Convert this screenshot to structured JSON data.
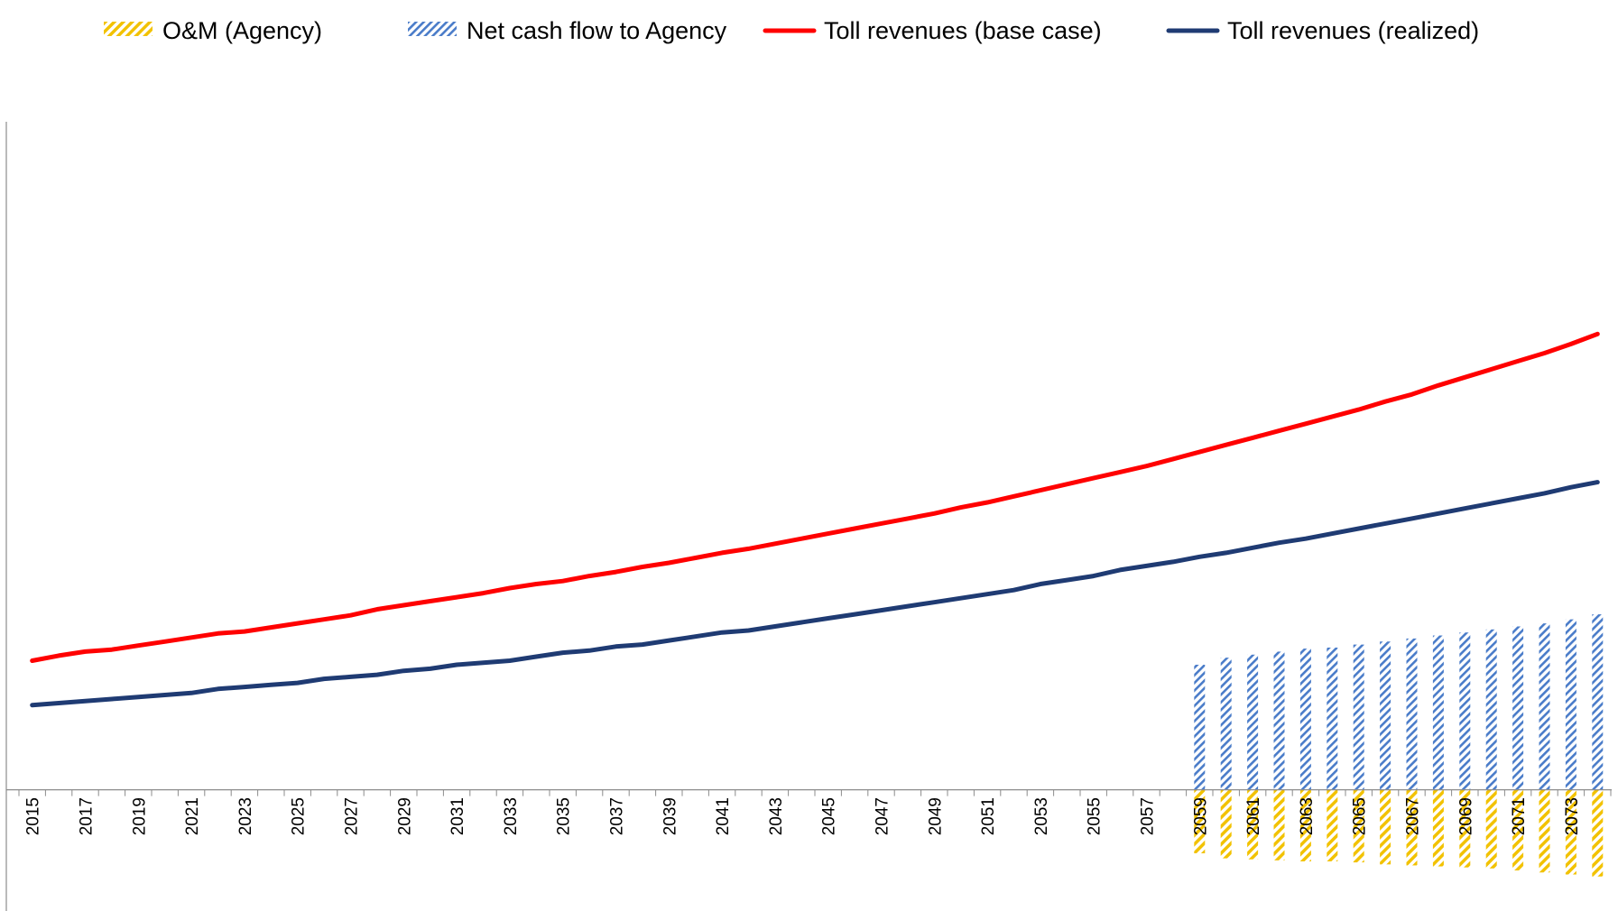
{
  "chart_data": {
    "type": "bar+line",
    "title": "",
    "xlabel": "",
    "ylabel": "",
    "ylim": [
      -100,
      600
    ],
    "y_tick_labels_shown": false,
    "grid": false,
    "legend_position": "top",
    "x": [
      2015,
      2016,
      2017,
      2018,
      2019,
      2020,
      2021,
      2022,
      2023,
      2024,
      2025,
      2026,
      2027,
      2028,
      2029,
      2030,
      2031,
      2032,
      2033,
      2034,
      2035,
      2036,
      2037,
      2038,
      2039,
      2040,
      2041,
      2042,
      2043,
      2044,
      2045,
      2046,
      2047,
      2048,
      2049,
      2050,
      2051,
      2052,
      2053,
      2054,
      2055,
      2056,
      2057,
      2058,
      2059,
      2060,
      2061,
      2062,
      2063,
      2064,
      2065,
      2066,
      2067,
      2068,
      2069,
      2070,
      2071,
      2072,
      2073,
      2074
    ],
    "x_tick_labels": [
      "2015",
      "2017",
      "2019",
      "2021",
      "2023",
      "2025",
      "2027",
      "2029",
      "2031",
      "2033",
      "2035",
      "2037",
      "2039",
      "2041",
      "2043",
      "2045",
      "2047",
      "2049",
      "2051",
      "2053",
      "2055",
      "2057",
      "2059",
      "2061",
      "2063",
      "2065",
      "2067",
      "2069",
      "2071",
      "2073"
    ],
    "series": [
      {
        "name": "O&M (Agency)",
        "kind": "bar",
        "color": "#F2C200",
        "pattern": "diagonal-hatch",
        "values": [
          null,
          null,
          null,
          null,
          null,
          null,
          null,
          null,
          null,
          null,
          null,
          null,
          null,
          null,
          null,
          null,
          null,
          null,
          null,
          null,
          null,
          null,
          null,
          null,
          null,
          null,
          null,
          null,
          null,
          null,
          null,
          null,
          null,
          null,
          null,
          null,
          null,
          null,
          null,
          null,
          null,
          null,
          null,
          null,
          -63,
          -68,
          -69,
          -70,
          -71,
          -71,
          -72,
          -74,
          -75,
          -76,
          -77,
          -78,
          -80,
          -82,
          -84,
          -86
        ]
      },
      {
        "name": "Net cash flow to Agency",
        "kind": "bar",
        "color": "#4A7CC9",
        "pattern": "diagonal-hatch",
        "values": [
          null,
          null,
          null,
          null,
          null,
          null,
          null,
          null,
          null,
          null,
          null,
          null,
          null,
          null,
          null,
          null,
          null,
          null,
          null,
          null,
          null,
          null,
          null,
          null,
          null,
          null,
          null,
          null,
          null,
          null,
          null,
          null,
          null,
          null,
          null,
          null,
          null,
          null,
          null,
          null,
          null,
          null,
          null,
          null,
          124,
          131,
          134,
          137,
          140,
          141,
          144,
          147,
          150,
          153,
          156,
          159,
          162,
          165,
          169,
          174
        ]
      },
      {
        "name": "Toll revenues (base case)",
        "kind": "line",
        "color": "#FF0000",
        "values": [
          128,
          133,
          137,
          139,
          143,
          147,
          151,
          155,
          157,
          161,
          165,
          169,
          173,
          179,
          183,
          187,
          191,
          195,
          200,
          204,
          207,
          212,
          216,
          221,
          225,
          230,
          235,
          239,
          244,
          249,
          254,
          259,
          264,
          269,
          274,
          280,
          285,
          291,
          297,
          303,
          309,
          315,
          321,
          328,
          335,
          342,
          349,
          356,
          363,
          370,
          377,
          385,
          392,
          401,
          409,
          417,
          425,
          433,
          442,
          452
        ]
      },
      {
        "name": "Toll revenues (realized)",
        "kind": "line",
        "color": "#1F3B73",
        "values": [
          84,
          86,
          88,
          90,
          92,
          94,
          96,
          100,
          102,
          104,
          106,
          110,
          112,
          114,
          118,
          120,
          124,
          126,
          128,
          132,
          136,
          138,
          142,
          144,
          148,
          152,
          156,
          158,
          162,
          166,
          170,
          174,
          178,
          182,
          186,
          190,
          194,
          198,
          204,
          208,
          212,
          218,
          222,
          226,
          231,
          235,
          240,
          245,
          249,
          254,
          259,
          264,
          269,
          274,
          279,
          284,
          289,
          294,
          300,
          305
        ]
      }
    ]
  }
}
